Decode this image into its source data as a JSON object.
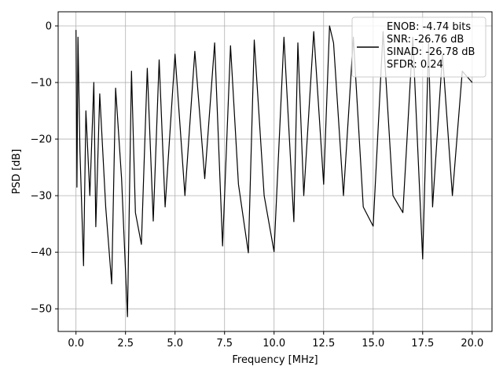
{
  "chart_data": {
    "type": "line",
    "title": "",
    "xlabel": "Frequency [MHz]",
    "ylabel": "PSD [dB]",
    "xlim": [
      -0.9,
      21.0
    ],
    "ylim": [
      -54.0,
      2.5
    ],
    "xticks": [
      0.0,
      2.5,
      5.0,
      7.5,
      10.0,
      12.5,
      15.0,
      17.5,
      20.0
    ],
    "xtick_labels": [
      "0.0",
      "2.5",
      "5.0",
      "7.5",
      "10.0",
      "12.5",
      "15.0",
      "17.5",
      "20.0"
    ],
    "yticks": [
      0,
      -10,
      -20,
      -30,
      -40,
      -50
    ],
    "ytick_labels": [
      "0",
      "−10",
      "−20",
      "−30",
      "−40",
      "−50"
    ],
    "grid": true,
    "legend_position": "top-right",
    "legend_lines": [
      "ENOB: -4.74 bits",
      "SNR: -26.76 dB",
      "SINAD: -26.78 dB",
      "SFDR: 0.24"
    ],
    "line_color": "#000000",
    "series": [
      {
        "x": [
          0.0,
          0.05,
          0.1,
          0.2,
          0.3,
          0.38,
          0.5,
          0.7,
          0.9,
          1.0,
          1.2,
          1.5,
          1.8,
          2.0,
          2.3,
          2.6,
          2.8,
          3.0,
          3.3,
          3.6,
          3.9,
          4.2,
          4.5,
          5.0,
          5.5,
          6.0,
          6.5,
          7.0,
          7.4,
          7.8,
          8.2,
          8.7,
          9.0,
          9.5,
          10.0,
          10.5,
          11.0,
          11.2,
          11.5,
          12.0,
          12.5,
          12.8,
          13.0,
          13.5,
          14.0,
          14.5,
          15.0,
          15.5,
          16.0,
          16.5,
          17.0,
          17.5,
          17.8,
          18.0,
          18.5,
          19.0,
          19.5,
          20.0
        ],
        "y": [
          -0.7,
          -28.5,
          -2.0,
          -22.0,
          -33.0,
          -42.4,
          -15.0,
          -30.0,
          -10.0,
          -35.5,
          -12.0,
          -32.0,
          -45.6,
          -11.0,
          -27.0,
          -51.4,
          -8.0,
          -33.0,
          -38.6,
          -7.5,
          -34.5,
          -6.0,
          -32.0,
          -5.0,
          -30.0,
          -4.5,
          -27.0,
          -3.0,
          -38.9,
          -3.5,
          -28.0,
          -40.1,
          -2.5,
          -30.0,
          -39.9,
          -2.0,
          -34.6,
          -3.0,
          -30.0,
          -1.0,
          -28.0,
          0.0,
          -3.0,
          -30.0,
          -2.0,
          -32.0,
          -35.4,
          -1.0,
          -30.0,
          -33.0,
          -2.0,
          -41.2,
          -3.0,
          -32.0,
          -5.0,
          -30.0,
          -8.0,
          -10.0
        ]
      }
    ]
  }
}
